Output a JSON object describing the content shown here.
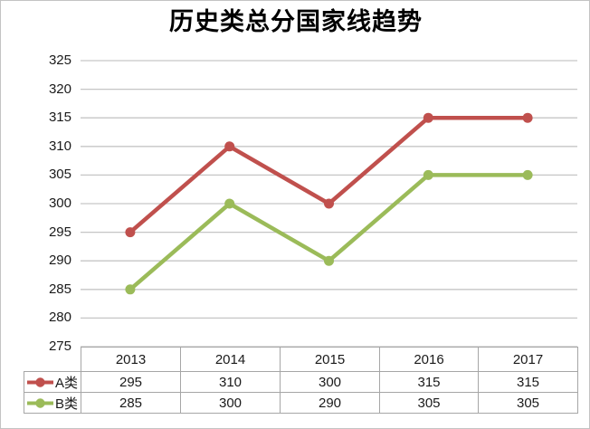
{
  "chart": {
    "title": "历史类总分国家线趋势"
  },
  "chart_data": {
    "type": "line",
    "title": "历史类总分国家线趋势",
    "categories": [
      "2013",
      "2014",
      "2015",
      "2016",
      "2017"
    ],
    "series": [
      {
        "name": "A类",
        "color": "#C0504D",
        "marker": "circle",
        "values": [
          295,
          310,
          300,
          315,
          315
        ]
      },
      {
        "name": "B类",
        "color": "#9BBB59",
        "marker": "circle",
        "values": [
          285,
          300,
          290,
          305,
          305
        ]
      }
    ],
    "ylim": [
      275,
      325
    ],
    "ytick_step": 5,
    "yticks_top_to_bottom": [
      "325",
      "320",
      "315",
      "310",
      "305",
      "300",
      "295",
      "290",
      "285",
      "280",
      "275"
    ],
    "grid": "horizontal",
    "gridline_color": "#c6c6c6",
    "legend_position": "data-table-left",
    "xlabel": "",
    "ylabel": ""
  }
}
